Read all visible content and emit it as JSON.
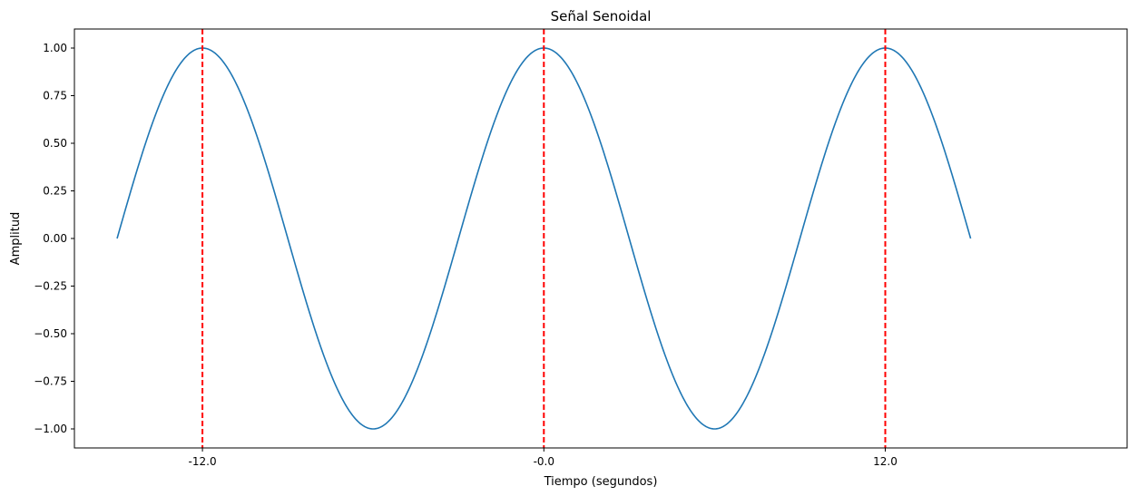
{
  "chart_data": {
    "type": "line",
    "title": "Señal Senoidal",
    "xlabel": "Tiempo (segundos)",
    "ylabel": "Amplitud",
    "xlim": [
      -16.5,
      20.5
    ],
    "ylim": [
      -1.1,
      1.1
    ],
    "grid": false,
    "series": [
      {
        "function": "sin",
        "amplitude": 1.0,
        "period": 12.0,
        "x_start": -15.0,
        "x_end": 15.0,
        "color": "#1f77b4",
        "x": [
          -15.0,
          -13.5,
          -12.0,
          -10.5,
          -9.0,
          -7.5,
          -6.0,
          -4.5,
          -3.0,
          -1.5,
          0.0,
          1.5,
          3.0,
          4.5,
          6.0,
          7.5,
          9.0,
          10.5,
          12.0,
          13.5,
          15.0
        ],
        "y": [
          0.0,
          0.707,
          1.0,
          0.707,
          0.0,
          -0.707,
          -1.0,
          -0.707,
          0.0,
          0.707,
          1.0,
          0.707,
          0.0,
          -0.707,
          -1.0,
          -0.707,
          0.0,
          0.707,
          1.0,
          0.707,
          0.0
        ]
      }
    ],
    "vlines": {
      "x": [
        -12.0,
        0.0,
        12.0
      ],
      "color": "#ff0000",
      "style": "dashed"
    },
    "xticks": [
      {
        "value": -12.0,
        "label": "-12.0"
      },
      {
        "value": 0.0,
        "label": "-0.0"
      },
      {
        "value": 12.0,
        "label": "12.0"
      }
    ],
    "yticks": [
      {
        "value": 1.0,
        "label": "1.00"
      },
      {
        "value": 0.75,
        "label": "0.75"
      },
      {
        "value": 0.5,
        "label": "0.50"
      },
      {
        "value": 0.25,
        "label": "0.25"
      },
      {
        "value": 0.0,
        "label": "0.00"
      },
      {
        "value": -0.25,
        "label": "−0.25"
      },
      {
        "value": -0.5,
        "label": "−0.50"
      },
      {
        "value": -0.75,
        "label": "−0.75"
      },
      {
        "value": -1.0,
        "label": "−1.00"
      }
    ]
  }
}
